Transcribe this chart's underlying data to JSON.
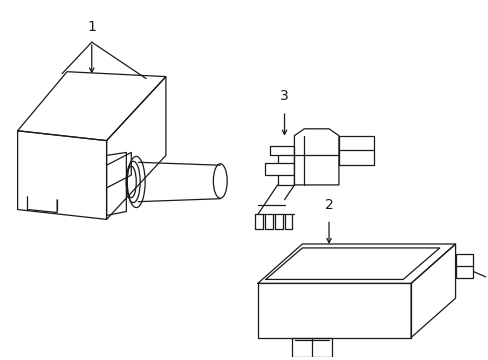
{
  "bg_color": "#ffffff",
  "line_color": "#1a1a1a",
  "line_width": 0.9,
  "fig_width": 4.89,
  "fig_height": 3.6,
  "dpi": 100
}
